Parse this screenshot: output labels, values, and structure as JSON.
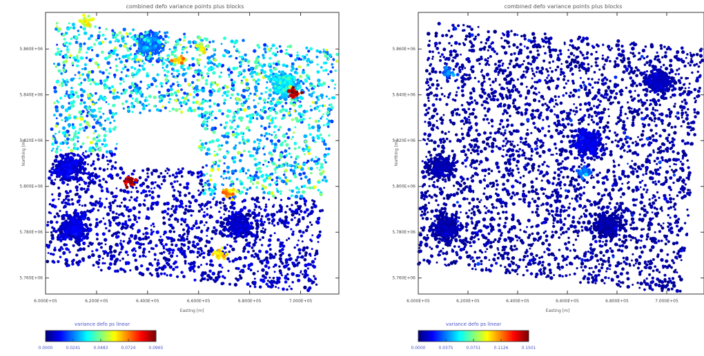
{
  "chart_data": [
    {
      "type": "scatter",
      "title": "combined defo variance points plus blocks",
      "xlabel": "Easting [m]",
      "ylabel": "Northing [m]",
      "xlim": [
        600000,
        715000
      ],
      "ylim": [
        5753000,
        5876000
      ],
      "x_ticks": [
        "6.000E+05",
        "6.200E+05",
        "6.400E+05",
        "6.600E+05",
        "6.800E+05",
        "7.000E+05"
      ],
      "y_ticks": [
        "5.760E+06",
        "5.780E+06",
        "5.800E+06",
        "5.820E+06",
        "5.840E+06",
        "5.860E+06"
      ],
      "grid": false,
      "colorbar": {
        "label": "variance defo ps linear",
        "ticks": [
          "0.0000",
          "0.0241",
          "0.0483",
          "0.0724",
          "0.0965"
        ],
        "range": [
          0,
          0.0965
        ],
        "colormap": "jet"
      },
      "point_cloud": {
        "footprint_corners": [
          [
            604000,
            5872000
          ],
          [
            715000,
            5860000
          ],
          [
            706000,
            5753000
          ],
          [
            600000,
            5766000
          ]
        ],
        "low_variance_region": "south and west",
        "medium_variance_region": "north and east",
        "empty_region": "center (approx. 628000-660000 E, 5808000-5832000 N)",
        "dense_clusters": [
          {
            "x": 676000,
            "y": 5783000,
            "value": 0.004
          },
          {
            "x": 609000,
            "y": 5808000,
            "value": 0.006
          },
          {
            "x": 611000,
            "y": 5782000,
            "value": 0.006
          },
          {
            "x": 694000,
            "y": 5845000,
            "value": 0.03
          },
          {
            "x": 641000,
            "y": 5862000,
            "value": 0.02
          }
        ],
        "high_value_hotspots": [
          {
            "x": 633000,
            "y": 5802000,
            "value": 0.09
          },
          {
            "x": 697000,
            "y": 5841000,
            "value": 0.088
          },
          {
            "x": 653000,
            "y": 5855000,
            "value": 0.062
          },
          {
            "x": 672000,
            "y": 5797000,
            "value": 0.066
          },
          {
            "x": 668000,
            "y": 5770000,
            "value": 0.06
          },
          {
            "x": 616000,
            "y": 5872000,
            "value": 0.055
          },
          {
            "x": 661000,
            "y": 5860000,
            "value": 0.05
          }
        ]
      }
    },
    {
      "type": "scatter",
      "title": "combined defo variance points plus blocks",
      "xlabel": "Easting [m]",
      "ylabel": "Northing [m]",
      "xlim": [
        600000,
        715000
      ],
      "ylim": [
        5753000,
        5876000
      ],
      "x_ticks": [
        "6.000E+05",
        "6.200E+05",
        "6.400E+05",
        "6.600E+05",
        "6.800E+05",
        "7.000E+05"
      ],
      "y_ticks": [
        "5.760E+06",
        "5.780E+06",
        "5.800E+06",
        "5.820E+06",
        "5.840E+06",
        "5.860E+06"
      ],
      "grid": false,
      "colorbar": {
        "label": "variance defo ps linear",
        "ticks": [
          "0.0000",
          "0.0375",
          "0.0751",
          "0.1126",
          "0.1501"
        ],
        "range": [
          0,
          0.1501
        ],
        "colormap": "jet"
      },
      "point_cloud": {
        "footprint_corners": [
          [
            604000,
            5872000
          ],
          [
            715000,
            5860000
          ],
          [
            706000,
            5753000
          ],
          [
            600000,
            5766000
          ]
        ],
        "low_variance_region": "entire footprint",
        "medium_variance_region": "none",
        "empty_region": "none",
        "dense_clusters": [
          {
            "x": 676000,
            "y": 5783000,
            "value": 0.003
          },
          {
            "x": 668000,
            "y": 5819000,
            "value": 0.012
          },
          {
            "x": 609000,
            "y": 5808000,
            "value": 0.004
          },
          {
            "x": 611000,
            "y": 5782000,
            "value": 0.004
          },
          {
            "x": 697000,
            "y": 5845000,
            "value": 0.006
          }
        ],
        "high_value_hotspots": [
          {
            "x": 667000,
            "y": 5806000,
            "value": 0.035
          },
          {
            "x": 612000,
            "y": 5850000,
            "value": 0.03
          }
        ]
      }
    }
  ]
}
